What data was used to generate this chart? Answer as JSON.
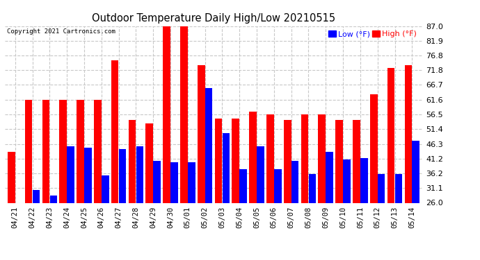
{
  "title": "Outdoor Temperature Daily High/Low 20210515",
  "copyright": "Copyright 2021 Cartronics.com",
  "legend_low": "Low (°F)",
  "legend_high": "High (°F)",
  "low_color": "#0000ff",
  "high_color": "#ff0000",
  "background_color": "#ffffff",
  "grid_color": "#c8c8c8",
  "ylim": [
    26.0,
    87.0
  ],
  "yticks": [
    26.0,
    31.1,
    36.2,
    41.2,
    46.3,
    51.4,
    56.5,
    61.6,
    66.7,
    71.8,
    76.8,
    81.9,
    87.0
  ],
  "dates": [
    "04/21",
    "04/22",
    "04/23",
    "04/24",
    "04/25",
    "04/26",
    "04/27",
    "04/28",
    "04/29",
    "04/30",
    "05/01",
    "05/02",
    "05/03",
    "05/04",
    "05/05",
    "05/06",
    "05/07",
    "05/08",
    "05/09",
    "05/10",
    "05/11",
    "05/12",
    "05/13",
    "05/14"
  ],
  "highs": [
    43.5,
    61.6,
    61.6,
    61.6,
    61.6,
    61.6,
    75.2,
    54.5,
    53.5,
    87.0,
    87.0,
    73.5,
    55.0,
    55.0,
    57.5,
    56.5,
    54.5,
    56.5,
    56.5,
    54.5,
    54.5,
    63.5,
    72.5,
    73.5
  ],
  "lows": [
    26.0,
    30.5,
    28.5,
    45.5,
    45.0,
    35.5,
    44.5,
    45.5,
    40.5,
    40.0,
    40.0,
    65.5,
    50.0,
    37.5,
    45.5,
    37.5,
    40.5,
    36.0,
    43.5,
    41.0,
    41.5,
    36.0,
    36.0,
    47.5
  ]
}
